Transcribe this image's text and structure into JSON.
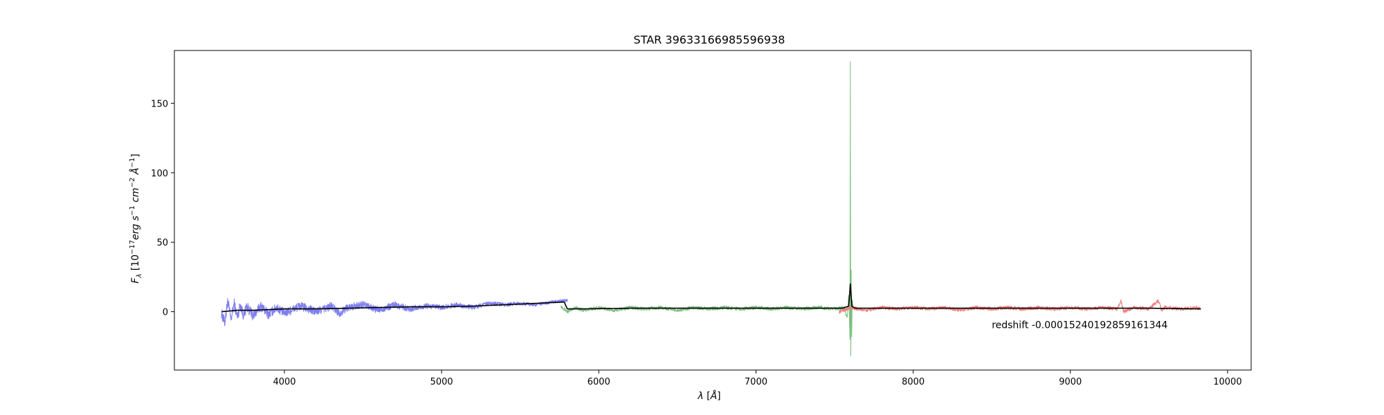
{
  "chart_data": {
    "type": "line",
    "title": "STAR 39633166985596938",
    "xlim": [
      3300,
      10150
    ],
    "ylim": [
      -42,
      188
    ],
    "xticks": [
      4000,
      5000,
      6000,
      7000,
      8000,
      9000,
      10000
    ],
    "yticks": [
      0,
      50,
      100,
      150
    ],
    "grid": false,
    "annotation": {
      "text": "redshift -0.00015240192859161344",
      "x": 8500,
      "y": -12
    },
    "series": [
      {
        "color": "#7777ee",
        "x_range": [
          3600,
          5800
        ],
        "points": [
          [
            3600,
            -1
          ],
          [
            3620,
            -8
          ],
          [
            3640,
            8
          ],
          [
            3660,
            -6
          ],
          [
            3680,
            6
          ],
          [
            3700,
            -4
          ],
          [
            3720,
            5
          ],
          [
            3740,
            -3
          ],
          [
            3760,
            4
          ],
          [
            3800,
            -3
          ],
          [
            3850,
            4
          ],
          [
            3900,
            -2
          ],
          [
            3950,
            3
          ],
          [
            4000,
            -1
          ],
          [
            4100,
            4
          ],
          [
            4200,
            0
          ],
          [
            4300,
            4
          ],
          [
            4350,
            -1
          ],
          [
            4400,
            3
          ],
          [
            4500,
            5
          ],
          [
            4600,
            1
          ],
          [
            4700,
            5
          ],
          [
            4800,
            2
          ],
          [
            4900,
            4
          ],
          [
            5000,
            3
          ],
          [
            5100,
            5
          ],
          [
            5200,
            3
          ],
          [
            5300,
            6
          ],
          [
            5400,
            5
          ],
          [
            5500,
            6
          ],
          [
            5600,
            5
          ],
          [
            5700,
            7
          ],
          [
            5800,
            8
          ]
        ]
      },
      {
        "color": "#77bb77",
        "x_range": [
          5760,
          7620
        ],
        "points": [
          [
            5760,
            4
          ],
          [
            5800,
            0
          ],
          [
            5850,
            3
          ],
          [
            5900,
            1
          ],
          [
            6000,
            3
          ],
          [
            6100,
            1
          ],
          [
            6200,
            3
          ],
          [
            6300,
            2
          ],
          [
            6400,
            3
          ],
          [
            6500,
            1
          ],
          [
            6600,
            3
          ],
          [
            6700,
            2
          ],
          [
            6800,
            3
          ],
          [
            6900,
            2
          ],
          [
            7000,
            3
          ],
          [
            7100,
            2
          ],
          [
            7200,
            3
          ],
          [
            7300,
            2
          ],
          [
            7400,
            3
          ],
          [
            7500,
            2
          ],
          [
            7560,
            3
          ],
          [
            7580,
            -4
          ],
          [
            7590,
            12
          ],
          [
            7598,
            -20
          ],
          [
            7600,
            180
          ],
          [
            7603,
            -32
          ],
          [
            7606,
            30
          ],
          [
            7609,
            -18
          ],
          [
            7612,
            8
          ],
          [
            7620,
            2
          ]
        ]
      },
      {
        "color": "#ee7777",
        "x_range": [
          7530,
          9830
        ],
        "points": [
          [
            7530,
            0
          ],
          [
            7600,
            3
          ],
          [
            7700,
            1
          ],
          [
            7800,
            3
          ],
          [
            7900,
            2
          ],
          [
            8000,
            3
          ],
          [
            8100,
            2
          ],
          [
            8200,
            3
          ],
          [
            8300,
            1
          ],
          [
            8400,
            3
          ],
          [
            8500,
            2
          ],
          [
            8600,
            3
          ],
          [
            8700,
            2
          ],
          [
            8800,
            3
          ],
          [
            8900,
            2
          ],
          [
            9000,
            3
          ],
          [
            9100,
            2
          ],
          [
            9200,
            3
          ],
          [
            9300,
            2
          ],
          [
            9320,
            8
          ],
          [
            9340,
            0
          ],
          [
            9400,
            3
          ],
          [
            9500,
            2
          ],
          [
            9560,
            8
          ],
          [
            9580,
            1
          ],
          [
            9600,
            3
          ],
          [
            9700,
            2
          ],
          [
            9800,
            3
          ],
          [
            9830,
            2
          ]
        ]
      },
      {
        "color": "#000000",
        "x_range": [
          3600,
          9830
        ],
        "points": [
          [
            3600,
            0
          ],
          [
            3650,
            0.5
          ],
          [
            3700,
            1
          ],
          [
            3800,
            1
          ],
          [
            3900,
            1.5
          ],
          [
            4000,
            2
          ],
          [
            4200,
            2
          ],
          [
            4400,
            2.5
          ],
          [
            4600,
            3
          ],
          [
            4800,
            3.5
          ],
          [
            5000,
            3.5
          ],
          [
            5200,
            4
          ],
          [
            5400,
            5
          ],
          [
            5600,
            6
          ],
          [
            5780,
            7
          ],
          [
            5800,
            2
          ],
          [
            5900,
            2
          ],
          [
            6200,
            2.5
          ],
          [
            6600,
            2.5
          ],
          [
            7000,
            2.5
          ],
          [
            7400,
            2.5
          ],
          [
            7550,
            2.5
          ],
          [
            7590,
            4
          ],
          [
            7600,
            20
          ],
          [
            7610,
            4
          ],
          [
            7630,
            2.5
          ],
          [
            8000,
            2.5
          ],
          [
            8500,
            2.5
          ],
          [
            9000,
            2.5
          ],
          [
            9500,
            2.5
          ],
          [
            9830,
            2
          ]
        ]
      }
    ]
  }
}
